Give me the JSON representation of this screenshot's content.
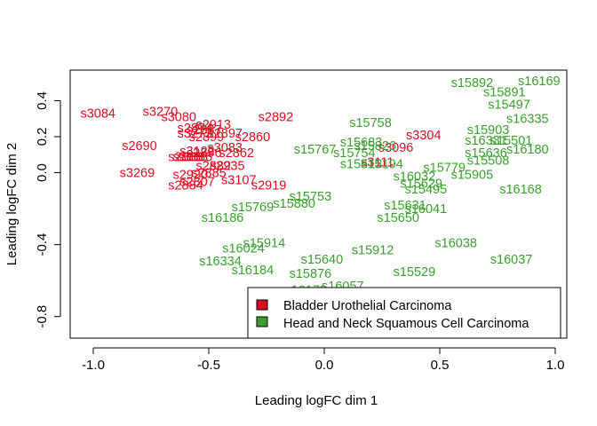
{
  "chart_data": {
    "type": "scatter",
    "xlabel": "Leading logFC dim 1",
    "ylabel": "Leading logFC dim 2",
    "xlim": [
      -1.1,
      1.05
    ],
    "ylim": [
      -0.92,
      0.57
    ],
    "x_ticks": [
      -1.0,
      -0.5,
      0.0,
      0.5,
      1.0
    ],
    "x_tick_labels": [
      "-1.0",
      "-0.5",
      "0.0",
      "0.5",
      "1.0"
    ],
    "y_ticks": [
      -0.8,
      -0.4,
      0.0,
      0.2,
      0.4
    ],
    "y_tick_labels": [
      "-0.8",
      "-0.4",
      "0.0",
      "0.2",
      "0.4"
    ],
    "grid": false,
    "legend_position": "bottom-right",
    "legend": [
      {
        "name": "Bladder Urothelial Carcinoma",
        "color": "#DF0A1F"
      },
      {
        "name": "Head and Neck Squamous Cell Carcinoma",
        "color": "#3A9E2E"
      }
    ],
    "series": [
      {
        "name": "Bladder Urothelial Carcinoma",
        "color": "#DF0A1F",
        "points": [
          {
            "label": "s3084",
            "x": -0.98,
            "y": 0.33
          },
          {
            "label": "s3270",
            "x": -0.71,
            "y": 0.34
          },
          {
            "label": "s3080",
            "x": -0.63,
            "y": 0.31
          },
          {
            "label": "s2913",
            "x": -0.48,
            "y": 0.27
          },
          {
            "label": "s2892",
            "x": -0.21,
            "y": 0.31
          },
          {
            "label": "s2874",
            "x": -0.56,
            "y": 0.25
          },
          {
            "label": "s2887",
            "x": -0.52,
            "y": 0.24
          },
          {
            "label": "s2897",
            "x": -0.43,
            "y": 0.22
          },
          {
            "label": "s2860",
            "x": -0.31,
            "y": 0.2
          },
          {
            "label": "s3272",
            "x": -0.56,
            "y": 0.22
          },
          {
            "label": "s2899",
            "x": -0.51,
            "y": 0.2
          },
          {
            "label": "s2690",
            "x": -0.8,
            "y": 0.15
          },
          {
            "label": "s3083",
            "x": -0.43,
            "y": 0.14
          },
          {
            "label": "s3122",
            "x": -0.55,
            "y": 0.12
          },
          {
            "label": "s2896",
            "x": -0.52,
            "y": 0.11
          },
          {
            "label": "s2862",
            "x": -0.38,
            "y": 0.11
          },
          {
            "label": "s2888",
            "x": -0.6,
            "y": 0.09
          },
          {
            "label": "s3088",
            "x": -0.58,
            "y": 0.09
          },
          {
            "label": "s3085",
            "x": -0.56,
            "y": 0.09
          },
          {
            "label": "s2935",
            "x": -0.42,
            "y": 0.04
          },
          {
            "label": "s2882",
            "x": -0.48,
            "y": 0.04
          },
          {
            "label": "s3269",
            "x": -0.81,
            "y": 0.0
          },
          {
            "label": "s2920",
            "x": -0.58,
            "y": -0.01
          },
          {
            "label": "s2885",
            "x": -0.5,
            "y": 0.0
          },
          {
            "label": "s3107",
            "x": -0.37,
            "y": -0.04
          },
          {
            "label": "s2919",
            "x": -0.24,
            "y": -0.07
          },
          {
            "label": "s2807",
            "x": -0.55,
            "y": -0.05
          },
          {
            "label": "s2884",
            "x": -0.6,
            "y": -0.07
          },
          {
            "label": "s3304",
            "x": 0.43,
            "y": 0.21
          },
          {
            "label": "s3096",
            "x": 0.31,
            "y": 0.14
          },
          {
            "label": "s3111",
            "x": 0.23,
            "y": 0.06
          }
        ]
      },
      {
        "name": "Head and Neck Squamous Cell Carcinoma",
        "color": "#3A9E2E",
        "points": [
          {
            "label": "s15892",
            "x": 0.64,
            "y": 0.5
          },
          {
            "label": "s16169",
            "x": 0.93,
            "y": 0.51
          },
          {
            "label": "s15891",
            "x": 0.78,
            "y": 0.45
          },
          {
            "label": "s15497",
            "x": 0.8,
            "y": 0.38
          },
          {
            "label": "s16335",
            "x": 0.88,
            "y": 0.3
          },
          {
            "label": "s15758",
            "x": 0.2,
            "y": 0.28
          },
          {
            "label": "s15903",
            "x": 0.71,
            "y": 0.24
          },
          {
            "label": "s16331",
            "x": 0.7,
            "y": 0.18
          },
          {
            "label": "s15501",
            "x": 0.81,
            "y": 0.18
          },
          {
            "label": "s16180",
            "x": 0.88,
            "y": 0.13
          },
          {
            "label": "s15683",
            "x": 0.16,
            "y": 0.17
          },
          {
            "label": "s15826",
            "x": 0.22,
            "y": 0.15
          },
          {
            "label": "s15767",
            "x": -0.04,
            "y": 0.13
          },
          {
            "label": "s15754",
            "x": 0.13,
            "y": 0.11
          },
          {
            "label": "s15636",
            "x": 0.7,
            "y": 0.11
          },
          {
            "label": "s15508",
            "x": 0.71,
            "y": 0.07
          },
          {
            "label": "s15513",
            "x": 0.16,
            "y": 0.05
          },
          {
            "label": "s15194",
            "x": 0.25,
            "y": 0.05
          },
          {
            "label": "s15779",
            "x": 0.52,
            "y": 0.03
          },
          {
            "label": "s16032",
            "x": 0.39,
            "y": -0.02
          },
          {
            "label": "s15905",
            "x": 0.64,
            "y": -0.01
          },
          {
            "label": "s15629",
            "x": 0.42,
            "y": -0.06
          },
          {
            "label": "s15495",
            "x": 0.44,
            "y": -0.09
          },
          {
            "label": "s16168",
            "x": 0.85,
            "y": -0.09
          },
          {
            "label": "s15753",
            "x": -0.06,
            "y": -0.13
          },
          {
            "label": "s15769",
            "x": -0.31,
            "y": -0.19
          },
          {
            "label": "s15880",
            "x": -0.13,
            "y": -0.17
          },
          {
            "label": "s15631",
            "x": 0.35,
            "y": -0.18
          },
          {
            "label": "s16041",
            "x": 0.44,
            "y": -0.2
          },
          {
            "label": "s16186",
            "x": -0.44,
            "y": -0.25
          },
          {
            "label": "s15650",
            "x": 0.32,
            "y": -0.25
          },
          {
            "label": "s15914",
            "x": -0.26,
            "y": -0.39
          },
          {
            "label": "s16024",
            "x": -0.35,
            "y": -0.42
          },
          {
            "label": "s15912",
            "x": 0.21,
            "y": -0.43
          },
          {
            "label": "s16038",
            "x": 0.57,
            "y": -0.39
          },
          {
            "label": "s16334",
            "x": -0.45,
            "y": -0.49
          },
          {
            "label": "s15640",
            "x": -0.01,
            "y": -0.48
          },
          {
            "label": "s16037",
            "x": 0.81,
            "y": -0.48
          },
          {
            "label": "s16184",
            "x": -0.31,
            "y": -0.54
          },
          {
            "label": "s15876",
            "x": -0.06,
            "y": -0.56
          },
          {
            "label": "s15529",
            "x": 0.39,
            "y": -0.55
          },
          {
            "label": "s16057",
            "x": 0.08,
            "y": -0.63
          },
          {
            "label": "s16173",
            "x": -0.08,
            "y": -0.65
          }
        ]
      }
    ]
  }
}
